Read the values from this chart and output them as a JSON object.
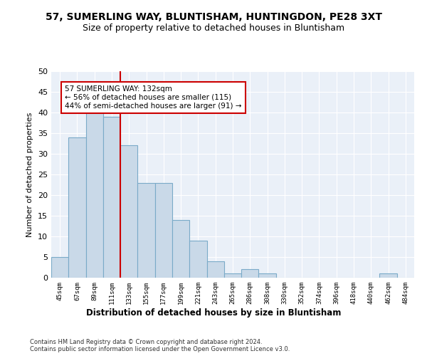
{
  "title": "57, SUMERLING WAY, BLUNTISHAM, HUNTINGDON, PE28 3XT",
  "subtitle": "Size of property relative to detached houses in Bluntisham",
  "xlabel": "Distribution of detached houses by size in Bluntisham",
  "ylabel": "Number of detached properties",
  "bar_labels": [
    "45sqm",
    "67sqm",
    "89sqm",
    "111sqm",
    "133sqm",
    "155sqm",
    "177sqm",
    "199sqm",
    "221sqm",
    "243sqm",
    "265sqm",
    "286sqm",
    "308sqm",
    "330sqm",
    "352sqm",
    "374sqm",
    "396sqm",
    "418sqm",
    "440sqm",
    "462sqm",
    "484sqm"
  ],
  "bar_values": [
    5,
    34,
    42,
    39,
    32,
    23,
    23,
    14,
    9,
    4,
    1,
    2,
    1,
    0,
    0,
    0,
    0,
    0,
    0,
    1,
    0
  ],
  "bar_color": "#c9d9e8",
  "bar_edge_color": "#7aaac8",
  "vline_color": "#cc0000",
  "annotation_text": "57 SUMERLING WAY: 132sqm\n← 56% of detached houses are smaller (115)\n44% of semi-detached houses are larger (91) →",
  "annotation_box_color": "#cc0000",
  "ylim": [
    0,
    50
  ],
  "yticks": [
    0,
    5,
    10,
    15,
    20,
    25,
    30,
    35,
    40,
    45,
    50
  ],
  "bg_color": "#eaf0f8",
  "footer": "Contains HM Land Registry data © Crown copyright and database right 2024.\nContains public sector information licensed under the Open Government Licence v3.0.",
  "title_fontsize": 10,
  "subtitle_fontsize": 9
}
